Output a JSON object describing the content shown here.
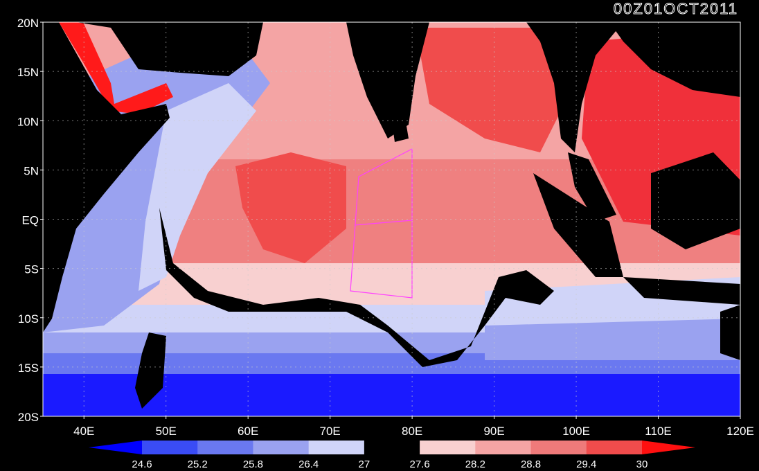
{
  "map": {
    "timestamp": "00Z01OCT2011",
    "lat_labels": [
      "20N",
      "15N",
      "10N",
      "5N",
      "EQ",
      "5S",
      "10S",
      "15S",
      "20S"
    ],
    "lon_labels": [
      "40E",
      "50E",
      "60E",
      "70E",
      "80E",
      "90E",
      "100E",
      "110E",
      "120E"
    ],
    "lat_range": [
      -20,
      20
    ],
    "lon_range": [
      35,
      120
    ],
    "grid": "dotted",
    "overlay_color": "#ff40ff"
  },
  "colorbar": {
    "labels": [
      "24.6",
      "25.2",
      "25.8",
      "26.4",
      "27",
      "27.6",
      "28.2",
      "28.8",
      "29.4",
      "30"
    ],
    "colors": [
      "#0000ff",
      "#3a4cf5",
      "#6a78f0",
      "#9aa2f0",
      "#d0d4f8",
      "#000000",
      "#f8d0d0",
      "#f4a4a4",
      "#ef7a7a",
      "#f04c4c",
      "#ff1010"
    ],
    "land_color": "#000000"
  }
}
